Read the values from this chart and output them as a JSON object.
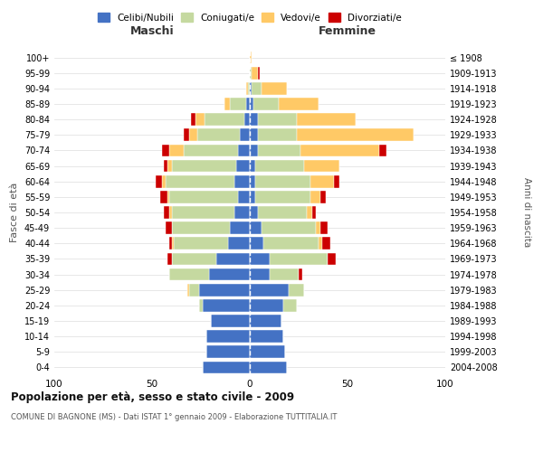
{
  "age_groups": [
    "0-4",
    "5-9",
    "10-14",
    "15-19",
    "20-24",
    "25-29",
    "30-34",
    "35-39",
    "40-44",
    "45-49",
    "50-54",
    "55-59",
    "60-64",
    "65-69",
    "70-74",
    "75-79",
    "80-84",
    "85-89",
    "90-94",
    "95-99",
    "100+"
  ],
  "birth_years": [
    "2004-2008",
    "1999-2003",
    "1994-1998",
    "1989-1993",
    "1984-1988",
    "1979-1983",
    "1974-1978",
    "1969-1973",
    "1964-1968",
    "1959-1963",
    "1954-1958",
    "1949-1953",
    "1944-1948",
    "1939-1943",
    "1934-1938",
    "1929-1933",
    "1924-1928",
    "1919-1923",
    "1914-1918",
    "1909-1913",
    "≤ 1908"
  ],
  "colors": {
    "celibi": "#4472c4",
    "coniugati": "#c5d9a0",
    "vedovi": "#ffc966",
    "divorziati": "#cc0000"
  },
  "maschi": {
    "celibi": [
      24,
      22,
      22,
      20,
      24,
      26,
      21,
      17,
      11,
      10,
      8,
      6,
      8,
      7,
      6,
      5,
      3,
      2,
      0,
      0,
      0
    ],
    "coniugati": [
      0,
      0,
      0,
      0,
      2,
      5,
      20,
      23,
      28,
      30,
      32,
      35,
      35,
      33,
      28,
      22,
      20,
      8,
      1,
      0,
      0
    ],
    "vedovi": [
      0,
      0,
      0,
      0,
      0,
      1,
      0,
      0,
      1,
      0,
      1,
      1,
      2,
      2,
      7,
      4,
      5,
      3,
      1,
      0,
      0
    ],
    "divorziati": [
      0,
      0,
      0,
      0,
      0,
      0,
      0,
      2,
      1,
      3,
      3,
      4,
      3,
      2,
      4,
      3,
      2,
      0,
      0,
      0,
      0
    ]
  },
  "femmine": {
    "celibi": [
      19,
      18,
      17,
      16,
      17,
      20,
      10,
      10,
      7,
      6,
      4,
      3,
      3,
      3,
      4,
      4,
      4,
      2,
      1,
      0,
      0
    ],
    "coniugati": [
      0,
      0,
      0,
      0,
      7,
      8,
      15,
      30,
      28,
      28,
      25,
      28,
      28,
      25,
      22,
      20,
      20,
      13,
      5,
      1,
      0
    ],
    "vedovi": [
      0,
      0,
      0,
      0,
      0,
      0,
      0,
      0,
      2,
      2,
      3,
      5,
      12,
      18,
      40,
      60,
      30,
      20,
      13,
      3,
      1
    ],
    "divorziati": [
      0,
      0,
      0,
      0,
      0,
      0,
      2,
      4,
      4,
      4,
      2,
      3,
      3,
      0,
      4,
      0,
      0,
      0,
      0,
      1,
      0
    ]
  },
  "title": "Popolazione per età, sesso e stato civile - 2009",
  "subtitle": "COMUNE DI BAGNONE (MS) - Dati ISTAT 1° gennaio 2009 - Elaborazione TUTTITALIA.IT",
  "ylabel_left": "Fasce di età",
  "ylabel_right": "Anni di nascita",
  "xlabel_left": "Maschi",
  "xlabel_right": "Femmine",
  "xlim": 100,
  "background_color": "#ffffff"
}
